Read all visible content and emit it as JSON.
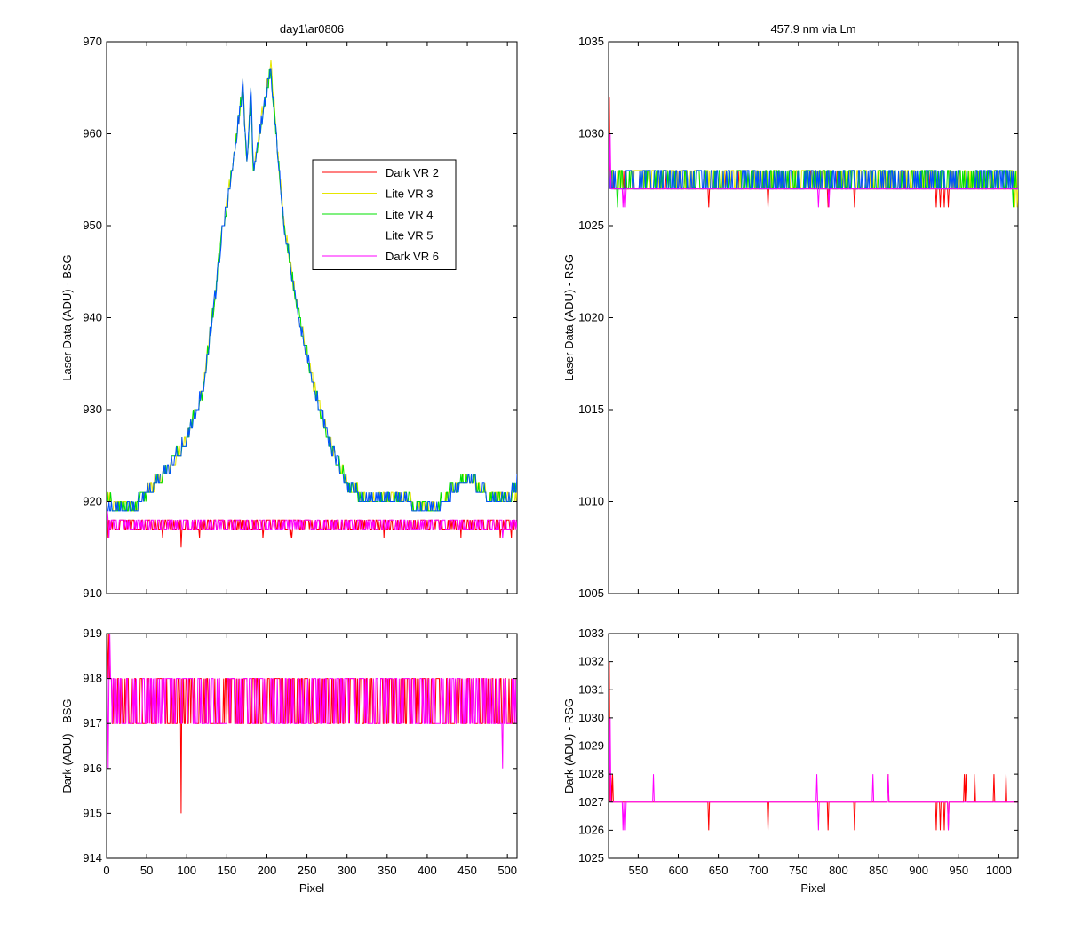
{
  "chart_data": [
    {
      "id": "bsg-laser",
      "type": "line",
      "title": "day1\\ar0806",
      "xlabel": "",
      "ylabel": "Laser Data (ADU) - BSG",
      "xlim": [
        0,
        512
      ],
      "ylim": [
        910,
        970
      ],
      "xticks": [
        0,
        50,
        100,
        150,
        200,
        250,
        300,
        350,
        400,
        450,
        500
      ],
      "yticks": [
        910,
        920,
        930,
        940,
        950,
        960,
        970
      ],
      "show_xticklabels": false,
      "grid": false,
      "legend": {
        "placement": "upper-center",
        "entries": [
          {
            "label": "Dark VR 2",
            "color": "#ff0000"
          },
          {
            "label": "Lite VR 3",
            "color": "#e6e600"
          },
          {
            "label": "Lite VR 4",
            "color": "#00e000"
          },
          {
            "label": "Lite VR 5",
            "color": "#0050ff"
          },
          {
            "label": "Dark VR 6",
            "color": "#ff00ff"
          }
        ]
      },
      "series": [
        {
          "color": "#ff0000",
          "kind": "dark",
          "base": 917,
          "hi": 918,
          "noise": 0.45,
          "down": 0.01,
          "spikes": [
            [
              0,
              919
            ],
            [
              2,
              916
            ],
            [
              93,
              915
            ]
          ]
        },
        {
          "color": "#e6e600",
          "kind": "signal",
          "noise": 0.35,
          "x": [
            0,
            10,
            20,
            40,
            60,
            80,
            100,
            120,
            135,
            145,
            148,
            170,
            175,
            180,
            183,
            205,
            220,
            240,
            260,
            280,
            300,
            320,
            345,
            380,
            410,
            440,
            452,
            460,
            480,
            500,
            512
          ],
          "y": [
            921,
            919,
            919.5,
            920,
            922,
            924,
            927,
            932,
            942,
            950,
            951,
            965,
            957,
            964,
            956,
            968,
            951,
            940,
            932,
            926,
            922,
            920.5,
            920,
            920,
            919.5,
            922,
            923,
            922,
            920.5,
            920,
            921
          ]
        },
        {
          "color": "#00e000",
          "kind": "signal",
          "noise": 0.35,
          "x": [
            0,
            10,
            20,
            40,
            60,
            80,
            100,
            120,
            135,
            145,
            148,
            170,
            175,
            180,
            183,
            205,
            220,
            240,
            260,
            280,
            300,
            320,
            345,
            380,
            410,
            440,
            452,
            460,
            480,
            500,
            512
          ],
          "y": [
            921,
            919,
            919.5,
            920,
            922,
            924,
            927,
            932,
            942,
            950,
            951,
            965,
            957,
            964,
            956,
            967,
            951,
            940,
            932,
            926,
            922,
            920.5,
            920,
            920,
            919.5,
            922,
            923,
            922,
            920.5,
            920,
            922
          ]
        },
        {
          "color": "#0050ff",
          "kind": "signal",
          "noise": 0.3,
          "x": [
            0,
            10,
            20,
            40,
            60,
            80,
            100,
            120,
            135,
            145,
            148,
            170,
            175,
            180,
            183,
            205,
            220,
            240,
            260,
            280,
            300,
            320,
            345,
            380,
            410,
            440,
            452,
            460,
            480,
            500,
            512
          ],
          "y": [
            920,
            919,
            919.5,
            920,
            922,
            924,
            927,
            932,
            942,
            950,
            951,
            965,
            957,
            965,
            956,
            967,
            951,
            940,
            932,
            926,
            922,
            920.5,
            920,
            920,
            919,
            922,
            923,
            922,
            920.5,
            920,
            922
          ]
        },
        {
          "color": "#ff00ff",
          "kind": "dark",
          "base": 917,
          "hi": 918,
          "noise": 0.5,
          "down": 0.0,
          "spikes": [
            [
              1,
              919
            ],
            [
              3,
              916
            ],
            [
              494,
              916
            ]
          ]
        }
      ]
    },
    {
      "id": "rsg-laser",
      "type": "line",
      "title": "457.9 nm via Lm",
      "xlabel": "",
      "ylabel": "Laser Data (ADU) - RSG",
      "xlim": [
        513,
        1024
      ],
      "ylim": [
        1005,
        1035
      ],
      "xticks": [
        550,
        600,
        650,
        700,
        750,
        800,
        850,
        900,
        950,
        1000
      ],
      "yticks": [
        1005,
        1010,
        1015,
        1020,
        1025,
        1030,
        1035
      ],
      "show_xticklabels": false,
      "grid": false,
      "series": [
        {
          "color": "#ff0000",
          "kind": "dark",
          "base": 1027,
          "hi": 1028,
          "noise": 0.03,
          "down": 0.0,
          "spikes": [
            [
              514,
              1032
            ],
            [
              516,
              1028
            ],
            [
              518,
              1028
            ],
            [
              520,
              1027
            ],
            [
              638,
              1026
            ],
            [
              712,
              1026
            ],
            [
              787,
              1026
            ],
            [
              820,
              1026
            ],
            [
              922,
              1026
            ],
            [
              927,
              1026
            ],
            [
              932,
              1026
            ],
            [
              937,
              1026
            ]
          ]
        },
        {
          "color": "#e6e600",
          "kind": "dark",
          "base": 1027,
          "hi": 1028,
          "noise": 0.45,
          "down": 0.0,
          "spikes": [
            [
              1020,
              1026
            ],
            [
              1023,
              1026
            ]
          ]
        },
        {
          "color": "#00e000",
          "kind": "dark",
          "base": 1027,
          "hi": 1028,
          "noise": 0.4,
          "down": 0.0,
          "spikes": [
            [
              524,
              1026
            ],
            [
              1018,
              1026
            ]
          ]
        },
        {
          "color": "#0050ff",
          "kind": "dark",
          "base": 1027,
          "hi": 1028,
          "noise": 0.38,
          "down": 0.0,
          "spikes": []
        },
        {
          "color": "#ff00ff",
          "kind": "dark",
          "base": 1027,
          "hi": 1028,
          "noise": 0.0,
          "down": 0.0,
          "spikes": [
            [
              513,
              1032
            ],
            [
              515,
              1030
            ],
            [
              531,
              1026
            ],
            [
              534,
              1026
            ],
            [
              775,
              1026
            ],
            [
              788,
              1026
            ]
          ]
        }
      ]
    },
    {
      "id": "bsg-dark",
      "type": "line",
      "title": "",
      "xlabel": "Pixel",
      "ylabel": "Dark (ADU) - BSG",
      "xlim": [
        0,
        512
      ],
      "ylim": [
        914,
        919
      ],
      "xticks": [
        0,
        50,
        100,
        150,
        200,
        250,
        300,
        350,
        400,
        450,
        500
      ],
      "yticks": [
        914,
        915,
        916,
        917,
        918,
        919
      ],
      "show_xticklabels": true,
      "grid": false,
      "series": [
        {
          "color": "#ff0000",
          "kind": "dark",
          "base": 917,
          "hi": 918,
          "noise": 0.45,
          "down": 0.0,
          "spikes": [
            [
              1,
              919
            ],
            [
              3,
              919
            ],
            [
              93,
              915
            ]
          ]
        },
        {
          "color": "#ff00ff",
          "kind": "dark",
          "base": 917,
          "hi": 918,
          "noise": 0.5,
          "down": 0.0,
          "spikes": [
            [
              0,
              919
            ],
            [
              2,
              916
            ],
            [
              4,
              919
            ],
            [
              494,
              916
            ]
          ]
        }
      ]
    },
    {
      "id": "rsg-dark",
      "type": "line",
      "title": "",
      "xlabel": "Pixel",
      "ylabel": "Dark (ADU) - RSG",
      "xlim": [
        513,
        1024
      ],
      "ylim": [
        1025,
        1033
      ],
      "xticks": [
        550,
        600,
        650,
        700,
        750,
        800,
        850,
        900,
        950,
        1000
      ],
      "yticks": [
        1025,
        1026,
        1027,
        1028,
        1029,
        1030,
        1031,
        1032,
        1033
      ],
      "show_xticklabels": true,
      "grid": false,
      "series": [
        {
          "color": "#ff0000",
          "kind": "dark",
          "base": 1027,
          "hi": 1028,
          "noise": 0.0,
          "down": 0.0,
          "spikes": [
            [
              514,
              1032
            ],
            [
              516,
              1028
            ],
            [
              518,
              1028
            ],
            [
              638,
              1026
            ],
            [
              712,
              1026
            ],
            [
              787,
              1026
            ],
            [
              820,
              1026
            ],
            [
              862,
              1028
            ],
            [
              922,
              1026
            ],
            [
              927,
              1026
            ],
            [
              932,
              1026
            ],
            [
              937,
              1026
            ],
            [
              957,
              1028
            ],
            [
              959,
              1028
            ],
            [
              970,
              1028
            ],
            [
              994,
              1028
            ],
            [
              1009,
              1028
            ]
          ]
        },
        {
          "color": "#ff00ff",
          "kind": "dark",
          "base": 1027,
          "hi": 1028,
          "noise": 0.0,
          "down": 0.0,
          "spikes": [
            [
              513,
              1032
            ],
            [
              515,
              1030
            ],
            [
              531,
              1026
            ],
            [
              534,
              1026
            ],
            [
              569,
              1028
            ],
            [
              773,
              1028
            ],
            [
              775,
              1026
            ],
            [
              843,
              1028
            ],
            [
              862,
              1028
            ],
            [
              937,
              1026
            ]
          ]
        }
      ]
    }
  ]
}
